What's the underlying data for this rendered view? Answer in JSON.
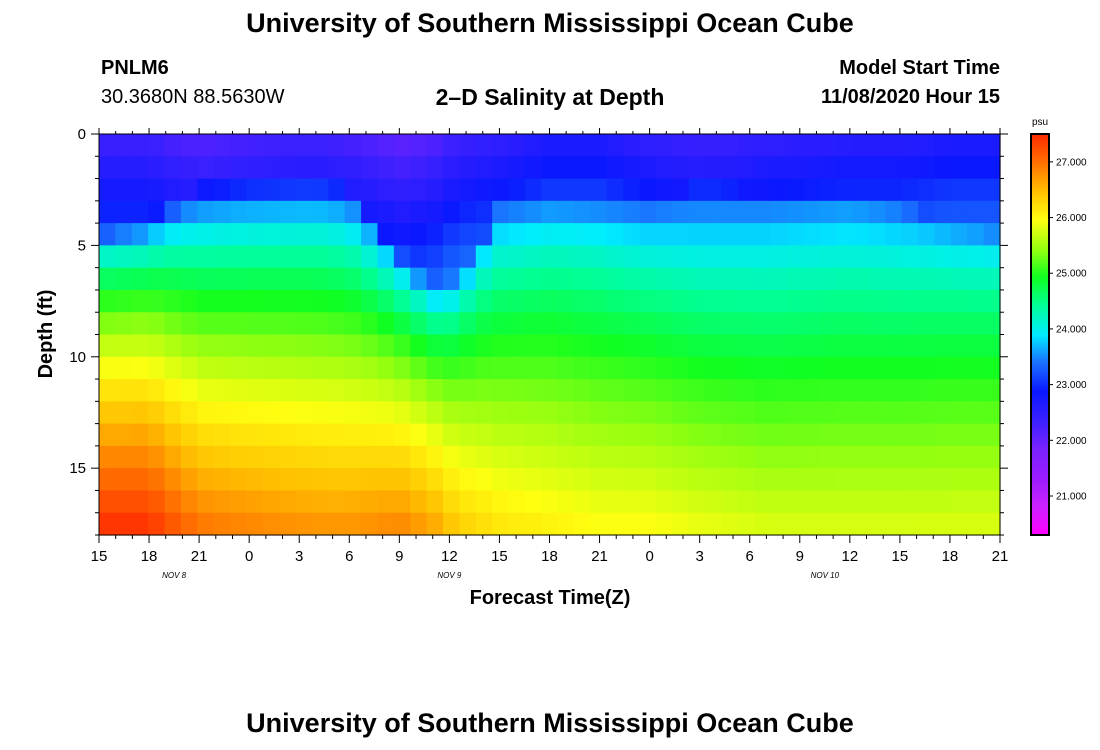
{
  "header": {
    "title": "University of Southern Mississippi Ocean Cube",
    "station_id": "PNLM6",
    "station_coords": "30.3680N 88.5630W",
    "chart_title": "2–D Salinity at Depth",
    "model_start_label": "Model Start Time",
    "model_start_value": "11/08/2020 Hour 15"
  },
  "footer": {
    "title": "University of Southern Mississippi Ocean Cube"
  },
  "chart_data": {
    "type": "heatmap",
    "title": "2–D Salinity at Depth",
    "xlabel": "Forecast Time(Z)",
    "ylabel": "Depth (ft)",
    "x_tick_labels": [
      "15",
      "18",
      "21",
      "0",
      "3",
      "6",
      "9",
      "12",
      "15",
      "18",
      "21",
      "0",
      "3",
      "6",
      "9",
      "12",
      "15",
      "18",
      "21"
    ],
    "x_hours": [
      0,
      3,
      6,
      9,
      12,
      15,
      18,
      21,
      24,
      27,
      30,
      33,
      36,
      39,
      42,
      45,
      48,
      51,
      54
    ],
    "x_range_hours": [
      0,
      54
    ],
    "date_labels": [
      {
        "label": "NOV  8",
        "hour": 4.5
      },
      {
        "label": "NOV  9",
        "hour": 21
      },
      {
        "label": "NOV  10",
        "hour": 43.5
      }
    ],
    "y_ticks": [
      0,
      5,
      10,
      15
    ],
    "y_range_ft": [
      0,
      18
    ],
    "colorbar": {
      "units": "psu",
      "range": [
        20.3,
        27.5
      ],
      "tick_values": [
        21.0,
        22.0,
        23.0,
        24.0,
        25.0,
        26.0,
        27.0
      ],
      "tick_labels": [
        "21.000",
        "22.000",
        "23.000",
        "24.000",
        "25.000",
        "26.000",
        "27.000"
      ],
      "colors": [
        "#ff00ff",
        "#cc22ff",
        "#9a1cff",
        "#7a22ff",
        "#3a20ff",
        "#0a18ff",
        "#1a70ff",
        "#00ecff",
        "#00ff98",
        "#10ff20",
        "#98ff10",
        "#ffff10",
        "#ffc000",
        "#ff7000",
        "#ff2a00"
      ]
    },
    "salinity_profile_model": {
      "description": "Salinity (psu) by depth at each forecast hour",
      "hours": [
        0,
        3,
        4,
        6,
        9,
        13,
        15,
        18,
        20,
        21.5,
        24,
        27,
        30,
        33,
        36,
        40,
        45,
        48,
        51,
        54
      ],
      "surface_psu": [
        22.3,
        22.3,
        22.2,
        22.1,
        22.2,
        22.3,
        22.2,
        22.0,
        22.1,
        22.3,
        22.4,
        22.6,
        22.6,
        22.4,
        22.3,
        22.4,
        22.5,
        22.5,
        22.6,
        22.6
      ],
      "halocline_depth_ft": [
        5.7,
        5.4,
        4.6,
        3.6,
        3.5,
        3.5,
        3.6,
        6.5,
        8.3,
        8.3,
        4.3,
        4.3,
        4.4,
        4.2,
        3.5,
        3.8,
        3.7,
        4.3,
        5.4,
        5.7
      ],
      "bottom_psu": [
        27.5,
        27.5,
        27.3,
        27.0,
        26.9,
        26.8,
        26.8,
        26.9,
        26.7,
        26.4,
        26.2,
        26.1,
        26.0,
        26.0,
        25.9,
        25.8,
        25.8,
        25.8,
        25.8,
        25.8
      ]
    }
  }
}
